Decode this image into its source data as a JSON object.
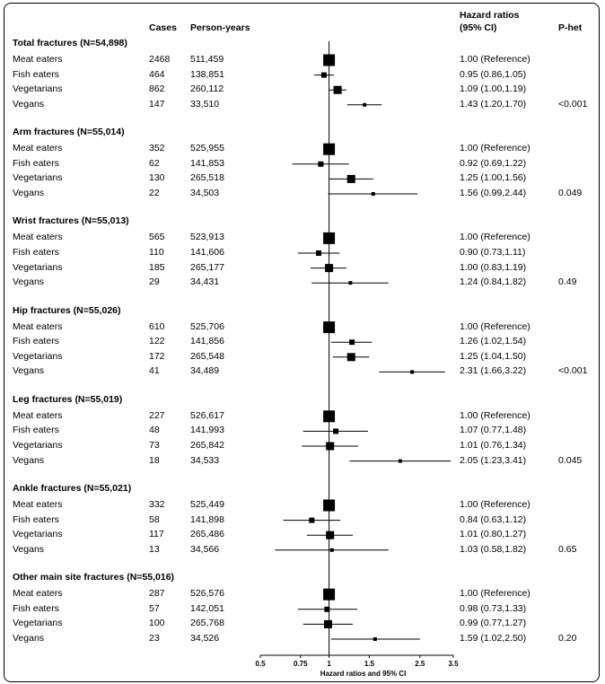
{
  "chart_data": {
    "type": "forest",
    "columns": {
      "cases": "Cases",
      "person_years": "Person-years",
      "hr": "Hazard ratios\n(95% CI)",
      "phet": "P-het"
    },
    "xlabel": "Hazard ratios and 95% CI",
    "x_scale": "log",
    "xlim": [
      0.5,
      3.5
    ],
    "xticks": [
      "0.5",
      "0.75",
      "1",
      "1.5",
      "2.5",
      "3.5"
    ],
    "reference_line": 1,
    "groups": [
      {
        "title": "Total fractures (N=54,898)",
        "p_het": "<0.001",
        "rows": [
          {
            "label": "Meat eaters",
            "cases": "2468",
            "py": "511,459",
            "hr_text": "1.00 (Reference)",
            "hr": 1.0,
            "lo": 1.0,
            "hi": 1.0
          },
          {
            "label": "Fish eaters",
            "cases": "464",
            "py": "138,851",
            "hr_text": "0.95 (0.86,1.05)",
            "hr": 0.95,
            "lo": 0.86,
            "hi": 1.05
          },
          {
            "label": "Vegetarians",
            "cases": "862",
            "py": "260,112",
            "hr_text": "1.09 (1.00,1.19)",
            "hr": 1.09,
            "lo": 1.0,
            "hi": 1.19
          },
          {
            "label": "Vegans",
            "cases": "147",
            "py": "33,510",
            "hr_text": "1.43 (1.20,1.70)",
            "hr": 1.43,
            "lo": 1.2,
            "hi": 1.7
          }
        ]
      },
      {
        "title": "Arm fractures (N=55,014)",
        "p_het": "0.049",
        "rows": [
          {
            "label": "Meat eaters",
            "cases": "352",
            "py": "525,955",
            "hr_text": "1.00 (Reference)",
            "hr": 1.0,
            "lo": 1.0,
            "hi": 1.0
          },
          {
            "label": "Fish eaters",
            "cases": "62",
            "py": "141,853",
            "hr_text": "0.92 (0.69,1.22)",
            "hr": 0.92,
            "lo": 0.69,
            "hi": 1.22
          },
          {
            "label": "Vegetarians",
            "cases": "130",
            "py": "265,518",
            "hr_text": "1.25 (1.00,1.56)",
            "hr": 1.25,
            "lo": 1.0,
            "hi": 1.56
          },
          {
            "label": "Vegans",
            "cases": "22",
            "py": "34,503",
            "hr_text": "1.56 (0.99,2.44)",
            "hr": 1.56,
            "lo": 0.99,
            "hi": 2.44
          }
        ]
      },
      {
        "title": "Wrist fractures (N=55,013)",
        "p_het": "0.49",
        "rows": [
          {
            "label": "Meat eaters",
            "cases": "565",
            "py": "523,913",
            "hr_text": "1.00 (Reference)",
            "hr": 1.0,
            "lo": 1.0,
            "hi": 1.0
          },
          {
            "label": "Fish eaters",
            "cases": "110",
            "py": "141,606",
            "hr_text": "0.90 (0.73,1.11)",
            "hr": 0.9,
            "lo": 0.73,
            "hi": 1.11
          },
          {
            "label": "Vegetarians",
            "cases": "185",
            "py": "265,177",
            "hr_text": "1.00 (0.83,1.19)",
            "hr": 1.0,
            "lo": 0.83,
            "hi": 1.19
          },
          {
            "label": "Vegans",
            "cases": "29",
            "py": "34,431",
            "hr_text": "1.24 (0.84,1.82)",
            "hr": 1.24,
            "lo": 0.84,
            "hi": 1.82
          }
        ]
      },
      {
        "title": "Hip fractures (N=55,026)",
        "p_het": "<0.001",
        "rows": [
          {
            "label": "Meat eaters",
            "cases": "610",
            "py": "525,706",
            "hr_text": "1.00 (Reference)",
            "hr": 1.0,
            "lo": 1.0,
            "hi": 1.0
          },
          {
            "label": "Fish eaters",
            "cases": "122",
            "py": "141,856",
            "hr_text": "1.26 (1.02,1.54)",
            "hr": 1.26,
            "lo": 1.02,
            "hi": 1.54
          },
          {
            "label": "Vegetarians",
            "cases": "172",
            "py": "265,548",
            "hr_text": "1.25 (1.04,1.50)",
            "hr": 1.25,
            "lo": 1.04,
            "hi": 1.5
          },
          {
            "label": "Vegans",
            "cases": "41",
            "py": "34,489",
            "hr_text": "2.31 (1.66,3.22)",
            "hr": 2.31,
            "lo": 1.66,
            "hi": 3.22
          }
        ]
      },
      {
        "title": "Leg fractures (N=55,019)",
        "p_het": "0.045",
        "rows": [
          {
            "label": "Meat eaters",
            "cases": "227",
            "py": "526,617",
            "hr_text": "1.00 (Reference)",
            "hr": 1.0,
            "lo": 1.0,
            "hi": 1.0
          },
          {
            "label": "Fish eaters",
            "cases": "48",
            "py": "141,993",
            "hr_text": "1.07 (0.77,1.48)",
            "hr": 1.07,
            "lo": 0.77,
            "hi": 1.48
          },
          {
            "label": "Vegetarians",
            "cases": "73",
            "py": "265,842",
            "hr_text": "1.01 (0.76,1.34)",
            "hr": 1.01,
            "lo": 0.76,
            "hi": 1.34
          },
          {
            "label": "Vegans",
            "cases": "18",
            "py": "34,533",
            "hr_text": "2.05 (1.23,3.41)",
            "hr": 2.05,
            "lo": 1.23,
            "hi": 3.41
          }
        ]
      },
      {
        "title": "Ankle fractures (N=55,021)",
        "p_het": "0.65",
        "rows": [
          {
            "label": "Meat eaters",
            "cases": "332",
            "py": "525,449",
            "hr_text": "1.00 (Reference)",
            "hr": 1.0,
            "lo": 1.0,
            "hi": 1.0
          },
          {
            "label": "Fish eaters",
            "cases": "58",
            "py": "141,898",
            "hr_text": "0.84 (0.63,1.12)",
            "hr": 0.84,
            "lo": 0.63,
            "hi": 1.12
          },
          {
            "label": "Vegetarians",
            "cases": "117",
            "py": "265,486",
            "hr_text": "1.01 (0.80,1.27)",
            "hr": 1.01,
            "lo": 0.8,
            "hi": 1.27
          },
          {
            "label": "Vegans",
            "cases": "13",
            "py": "34,566",
            "hr_text": "1.03 (0.58,1.82)",
            "hr": 1.03,
            "lo": 0.58,
            "hi": 1.82
          }
        ]
      },
      {
        "title": "Other main site fractures (N=55,016)",
        "p_het": "0.20",
        "rows": [
          {
            "label": "Meat eaters",
            "cases": "287",
            "py": "526,576",
            "hr_text": "1.00 (Reference)",
            "hr": 1.0,
            "lo": 1.0,
            "hi": 1.0
          },
          {
            "label": "Fish eaters",
            "cases": "57",
            "py": "142,051",
            "hr_text": "0.98 (0.73,1.33)",
            "hr": 0.98,
            "lo": 0.73,
            "hi": 1.33
          },
          {
            "label": "Vegetarians",
            "cases": "100",
            "py": "265,768",
            "hr_text": "0.99 (0.77,1.27)",
            "hr": 0.99,
            "lo": 0.77,
            "hi": 1.27
          },
          {
            "label": "Vegans",
            "cases": "23",
            "py": "34,526",
            "hr_text": "1.59 (1.02,2.50)",
            "hr": 1.59,
            "lo": 1.02,
            "hi": 2.5
          }
        ]
      }
    ]
  }
}
